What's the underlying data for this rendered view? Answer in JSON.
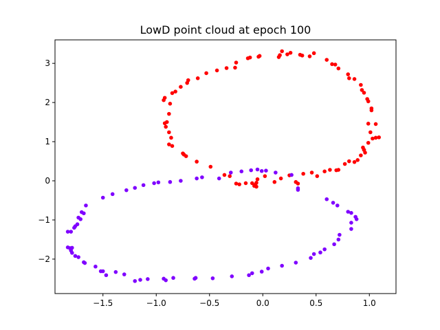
{
  "chart_data": {
    "type": "scatter",
    "title": "LowD point cloud at epoch 100",
    "xlabel": "",
    "ylabel": "",
    "xlim": [
      -1.95,
      1.25
    ],
    "ylim": [
      -2.88,
      3.6
    ],
    "xticks": [
      -1.5,
      -1.0,
      -0.5,
      0.0,
      0.5,
      1.0
    ],
    "xtick_labels": [
      "−1.5",
      "−1.0",
      "−0.5",
      "0.0",
      "0.5",
      "1.0"
    ],
    "yticks": [
      -2,
      -1,
      0,
      1,
      2,
      3
    ],
    "ytick_labels": [
      "−2",
      "−1",
      "0",
      "1",
      "2",
      "3"
    ],
    "grid": false,
    "legend": "none",
    "series": [
      {
        "color": "#ff0000",
        "points": [
          [
            0.18,
            3.31
          ],
          [
            0.26,
            3.27
          ],
          [
            0.35,
            3.22
          ],
          [
            0.44,
            3.18
          ],
          [
            0.48,
            3.26
          ],
          [
            0.37,
            3.2
          ],
          [
            0.23,
            3.23
          ],
          [
            0.16,
            3.21
          ],
          [
            0.15,
            3.16
          ],
          [
            -0.03,
            3.19
          ],
          [
            -0.04,
            3.17
          ],
          [
            -0.12,
            3.15
          ],
          [
            -0.14,
            3.13
          ],
          [
            -0.25,
            3.02
          ],
          [
            -0.26,
            2.89
          ],
          [
            -0.34,
            2.88
          ],
          [
            -0.43,
            2.82
          ],
          [
            -0.53,
            2.75
          ],
          [
            -0.61,
            2.62
          ],
          [
            -0.7,
            2.57
          ],
          [
            -0.71,
            2.5
          ],
          [
            -0.77,
            2.4
          ],
          [
            -0.82,
            2.28
          ],
          [
            -0.85,
            2.24
          ],
          [
            -0.92,
            2.12
          ],
          [
            -0.93,
            2.06
          ],
          [
            -0.87,
            1.97
          ],
          [
            -0.88,
            1.71
          ],
          [
            -0.9,
            1.5
          ],
          [
            -0.92,
            1.47
          ],
          [
            -0.91,
            1.38
          ],
          [
            -0.88,
            1.24
          ],
          [
            -0.86,
            1.1
          ],
          [
            -0.88,
            0.93
          ],
          [
            -0.85,
            0.89
          ],
          [
            -0.75,
            0.7
          ],
          [
            -0.74,
            0.67
          ],
          [
            -0.72,
            0.63
          ],
          [
            -0.62,
            0.49
          ],
          [
            -0.49,
            0.36
          ],
          [
            -0.36,
            0.15
          ],
          [
            -0.31,
            0.12
          ],
          [
            -0.25,
            -0.07
          ],
          [
            -0.22,
            -0.09
          ],
          [
            -0.16,
            -0.06
          ],
          [
            -0.1,
            -0.06
          ],
          [
            -0.08,
            -0.13
          ],
          [
            -0.07,
            -0.1
          ],
          [
            -0.06,
            -0.15
          ],
          [
            -0.06,
            -0.05
          ],
          [
            -0.05,
            0.04
          ],
          [
            0.02,
            0.12
          ],
          [
            0.11,
            -0.03
          ],
          [
            0.17,
            0.06
          ],
          [
            0.25,
            0.14
          ],
          [
            0.31,
            -0.03
          ],
          [
            0.33,
            -0.07
          ],
          [
            0.38,
            0.18
          ],
          [
            0.46,
            0.21
          ],
          [
            0.51,
            0.12
          ],
          [
            0.58,
            0.24
          ],
          [
            0.63,
            0.28
          ],
          [
            0.69,
            0.27
          ],
          [
            0.71,
            0.28
          ],
          [
            0.77,
            0.43
          ],
          [
            0.81,
            0.5
          ],
          [
            0.86,
            0.48
          ],
          [
            0.89,
            0.53
          ],
          [
            0.92,
            0.65
          ],
          [
            0.96,
            0.72
          ],
          [
            0.95,
            0.79
          ],
          [
            0.95,
            0.79
          ],
          [
            0.94,
            0.85
          ],
          [
            0.99,
            0.97
          ],
          [
            1.03,
            1.08
          ],
          [
            1.06,
            1.1
          ],
          [
            1.09,
            1.11
          ],
          [
            1.01,
            1.24
          ],
          [
            1.06,
            1.45
          ],
          [
            0.99,
            1.46
          ],
          [
            1.02,
            1.8
          ],
          [
            1.02,
            1.85
          ],
          [
            0.99,
            2.03
          ],
          [
            0.98,
            2.09
          ],
          [
            0.95,
            2.25
          ],
          [
            0.93,
            2.32
          ],
          [
            0.92,
            2.45
          ],
          [
            0.86,
            2.6
          ],
          [
            0.81,
            2.62
          ],
          [
            0.8,
            2.72
          ],
          [
            0.71,
            2.87
          ],
          [
            0.68,
            2.97
          ],
          [
            0.65,
            2.98
          ],
          [
            0.6,
            3.09
          ]
        ]
      },
      {
        "color": "#7f00ff",
        "points": [
          [
            -0.05,
            0.29
          ],
          [
            -0.01,
            0.25
          ],
          [
            -0.11,
            0.27
          ],
          [
            -0.2,
            0.24
          ],
          [
            0.03,
            0.26
          ],
          [
            0.12,
            0.21
          ],
          [
            0.27,
            0.15
          ],
          [
            0.33,
            -0.19
          ],
          [
            0.33,
            -0.23
          ],
          [
            0.6,
            -0.47
          ],
          [
            0.66,
            -0.56
          ],
          [
            0.7,
            -0.63
          ],
          [
            0.8,
            -0.79
          ],
          [
            0.83,
            -0.82
          ],
          [
            0.87,
            -0.92
          ],
          [
            0.88,
            -0.98
          ],
          [
            0.83,
            -1.07
          ],
          [
            0.83,
            -1.23
          ],
          [
            0.72,
            -1.38
          ],
          [
            0.71,
            -1.5
          ],
          [
            0.67,
            -1.62
          ],
          [
            0.58,
            -1.75
          ],
          [
            0.54,
            -1.83
          ],
          [
            0.48,
            -1.87
          ],
          [
            0.45,
            -1.97
          ],
          [
            0.31,
            -2.09
          ],
          [
            0.18,
            -2.17
          ],
          [
            0.05,
            -2.24
          ],
          [
            -0.01,
            -2.32
          ],
          [
            -0.1,
            -2.36
          ],
          [
            -0.13,
            -2.41
          ],
          [
            -0.29,
            -2.44
          ],
          [
            -0.47,
            -2.49
          ],
          [
            -0.63,
            -2.48
          ],
          [
            -0.64,
            -2.5
          ],
          [
            -0.84,
            -2.48
          ],
          [
            -0.91,
            -2.54
          ],
          [
            -0.93,
            -2.5
          ],
          [
            -1.08,
            -2.51
          ],
          [
            -1.15,
            -2.53
          ],
          [
            -1.2,
            -2.56
          ],
          [
            -1.3,
            -2.39
          ],
          [
            -1.38,
            -2.33
          ],
          [
            -1.47,
            -2.41
          ],
          [
            -1.5,
            -2.31
          ],
          [
            -1.52,
            -2.31
          ],
          [
            -1.57,
            -2.19
          ],
          [
            -1.67,
            -2.1
          ],
          [
            -1.68,
            -2.08
          ],
          [
            -1.73,
            -1.95
          ],
          [
            -1.76,
            -1.92
          ],
          [
            -1.79,
            -1.84
          ],
          [
            -1.8,
            -1.78
          ],
          [
            -1.81,
            -1.72
          ],
          [
            -1.79,
            -1.71
          ],
          [
            -1.83,
            -1.7
          ],
          [
            -1.83,
            -1.3
          ],
          [
            -1.8,
            -1.3
          ],
          [
            -1.77,
            -1.2
          ],
          [
            -1.76,
            -1.16
          ],
          [
            -1.74,
            -1.11
          ],
          [
            -1.71,
            -0.98
          ],
          [
            -1.73,
            -0.94
          ],
          [
            -1.7,
            -0.8
          ],
          [
            -1.68,
            -0.83
          ],
          [
            -1.66,
            -0.63
          ],
          [
            -1.5,
            -0.43
          ],
          [
            -1.41,
            -0.34
          ],
          [
            -1.28,
            -0.24
          ],
          [
            -1.2,
            -0.18
          ],
          [
            -1.12,
            -0.11
          ],
          [
            -1.02,
            -0.06
          ],
          [
            -0.98,
            -0.04
          ],
          [
            -0.87,
            -0.03
          ],
          [
            -0.77,
            0.0
          ],
          [
            -0.62,
            0.06
          ],
          [
            -0.57,
            0.09
          ],
          [
            -0.41,
            0.06
          ],
          [
            -0.3,
            0.21
          ]
        ]
      }
    ]
  }
}
